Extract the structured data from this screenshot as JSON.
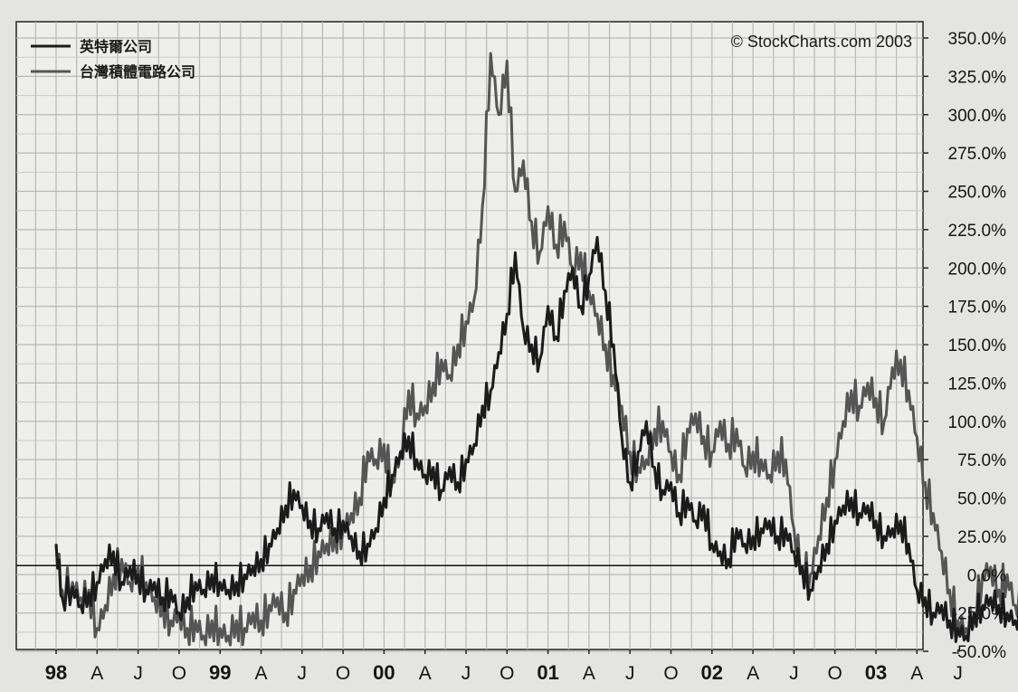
{
  "chart_data": {
    "type": "line",
    "title": "",
    "xlabel": "",
    "ylabel": "",
    "copyright": "© StockCharts.com 2003",
    "ylim": [
      -50,
      350
    ],
    "y_ticks": [
      "350.0%",
      "325.0%",
      "300.0%",
      "275.0%",
      "250.0%",
      "225.0%",
      "200.0%",
      "175.0%",
      "150.0%",
      "125.0%",
      "100.0%",
      "75.0%",
      "50.0%",
      "25.0%",
      "0.0%",
      "-25.0%",
      "-50.0%"
    ],
    "x_ticks": [
      {
        "label": "98",
        "year": true
      },
      {
        "label": "A",
        "year": false
      },
      {
        "label": "J",
        "year": false
      },
      {
        "label": "O",
        "year": false
      },
      {
        "label": "99",
        "year": true
      },
      {
        "label": "A",
        "year": false
      },
      {
        "label": "J",
        "year": false
      },
      {
        "label": "O",
        "year": false
      },
      {
        "label": "00",
        "year": true
      },
      {
        "label": "A",
        "year": false
      },
      {
        "label": "J",
        "year": false
      },
      {
        "label": "O",
        "year": false
      },
      {
        "label": "01",
        "year": true
      },
      {
        "label": "A",
        "year": false
      },
      {
        "label": "J",
        "year": false
      },
      {
        "label": "O",
        "year": false
      },
      {
        "label": "02",
        "year": true
      },
      {
        "label": "A",
        "year": false
      },
      {
        "label": "J",
        "year": false
      },
      {
        "label": "O",
        "year": false
      },
      {
        "label": "03",
        "year": true
      },
      {
        "label": "A",
        "year": false
      },
      {
        "label": "J",
        "year": false
      }
    ],
    "reference_line": 0,
    "grid": true,
    "legend_position": "top-left",
    "series": [
      {
        "name": "英特爾公司",
        "color": "#1b1b1b",
        "points": [
          [
            0,
            20
          ],
          [
            0.3,
            -15
          ],
          [
            0.8,
            -8
          ],
          [
            1.2,
            -20
          ],
          [
            1.6,
            -12
          ],
          [
            2.0,
            -5
          ],
          [
            2.4,
            10
          ],
          [
            2.8,
            15
          ],
          [
            3.2,
            -5
          ],
          [
            3.6,
            5
          ],
          [
            4.0,
            0
          ],
          [
            4.4,
            -10
          ],
          [
            4.8,
            -5
          ],
          [
            5.2,
            -15
          ],
          [
            5.6,
            -10
          ],
          [
            6.0,
            -25
          ],
          [
            6.4,
            -15
          ],
          [
            6.8,
            -5
          ],
          [
            7.2,
            -10
          ],
          [
            7.6,
            0
          ],
          [
            8.0,
            -5
          ],
          [
            8.4,
            -10
          ],
          [
            8.8,
            -5
          ],
          [
            9.2,
            0
          ],
          [
            9.6,
            5
          ],
          [
            10.0,
            10
          ],
          [
            10.4,
            20
          ],
          [
            10.8,
            30
          ],
          [
            11.2,
            45
          ],
          [
            11.6,
            55
          ],
          [
            12.0,
            45
          ],
          [
            12.4,
            35
          ],
          [
            12.8,
            30
          ],
          [
            13.2,
            40
          ],
          [
            13.6,
            30
          ],
          [
            14.0,
            35
          ],
          [
            14.4,
            25
          ],
          [
            14.8,
            15
          ],
          [
            15.2,
            20
          ],
          [
            15.6,
            30
          ],
          [
            16.0,
            50
          ],
          [
            16.4,
            65
          ],
          [
            16.8,
            80
          ],
          [
            17.2,
            90
          ],
          [
            17.6,
            75
          ],
          [
            18.0,
            65
          ],
          [
            18.4,
            70
          ],
          [
            18.8,
            55
          ],
          [
            19.2,
            70
          ],
          [
            19.6,
            60
          ],
          [
            20.0,
            75
          ],
          [
            20.4,
            85
          ],
          [
            20.8,
            110
          ],
          [
            21.2,
            120
          ],
          [
            21.6,
            145
          ],
          [
            22.0,
            170
          ],
          [
            22.4,
            210
          ],
          [
            22.8,
            160
          ],
          [
            23.2,
            150
          ],
          [
            23.6,
            140
          ],
          [
            24.0,
            175
          ],
          [
            24.4,
            155
          ],
          [
            24.8,
            185
          ],
          [
            25.2,
            200
          ],
          [
            25.6,
            175
          ],
          [
            26.0,
            195
          ],
          [
            26.4,
            220
          ],
          [
            26.8,
            185
          ],
          [
            27.2,
            150
          ],
          [
            27.6,
            90
          ],
          [
            28.0,
            60
          ],
          [
            28.4,
            80
          ],
          [
            28.8,
            100
          ],
          [
            29.2,
            70
          ],
          [
            29.6,
            55
          ],
          [
            30.0,
            60
          ],
          [
            30.4,
            40
          ],
          [
            30.8,
            50
          ],
          [
            31.2,
            35
          ],
          [
            31.6,
            45
          ],
          [
            32.0,
            20
          ],
          [
            32.4,
            15
          ],
          [
            32.8,
            10
          ],
          [
            33.2,
            30
          ],
          [
            33.6,
            20
          ],
          [
            34.0,
            25
          ],
          [
            34.4,
            30
          ],
          [
            34.8,
            35
          ],
          [
            35.2,
            25
          ],
          [
            35.6,
            30
          ],
          [
            36.0,
            15
          ],
          [
            36.4,
            5
          ],
          [
            36.8,
            -10
          ],
          [
            37.2,
            5
          ],
          [
            37.6,
            20
          ],
          [
            38.0,
            35
          ],
          [
            38.4,
            45
          ],
          [
            38.8,
            50
          ],
          [
            39.2,
            40
          ],
          [
            39.6,
            45
          ],
          [
            40.0,
            35
          ],
          [
            40.4,
            25
          ],
          [
            40.8,
            30
          ],
          [
            41.2,
            35
          ],
          [
            41.6,
            20
          ],
          [
            42.0,
            -10
          ],
          [
            42.4,
            -15
          ],
          [
            42.8,
            -25
          ],
          [
            43.2,
            -20
          ],
          [
            43.6,
            -30
          ],
          [
            44.0,
            -35
          ],
          [
            44.4,
            -40
          ],
          [
            44.8,
            -25
          ],
          [
            45.2,
            -20
          ],
          [
            45.6,
            -15
          ],
          [
            46.0,
            -20
          ],
          [
            46.4,
            -25
          ],
          [
            46.8,
            -30
          ],
          [
            47.2,
            -25
          ],
          [
            47.6,
            -20
          ],
          [
            48.0,
            -15
          ],
          [
            48.4,
            -20
          ],
          [
            48.8,
            -10
          ],
          [
            49.2,
            -5
          ],
          [
            49.5,
            -10
          ],
          [
            49.8,
            -8
          ]
        ]
      },
      {
        "name": "台灣積體電路公司",
        "color": "#555555",
        "points": [
          [
            0,
            20
          ],
          [
            0.3,
            -10
          ],
          [
            0.8,
            -5
          ],
          [
            1.2,
            -15
          ],
          [
            1.6,
            -10
          ],
          [
            2.0,
            -35
          ],
          [
            2.4,
            -20
          ],
          [
            2.8,
            0
          ],
          [
            3.2,
            10
          ],
          [
            3.6,
            -5
          ],
          [
            4.0,
            5
          ],
          [
            4.4,
            -5
          ],
          [
            4.8,
            -15
          ],
          [
            5.2,
            -20
          ],
          [
            5.6,
            -30
          ],
          [
            6.0,
            -25
          ],
          [
            6.4,
            -35
          ],
          [
            6.8,
            -30
          ],
          [
            7.2,
            -40
          ],
          [
            7.6,
            -30
          ],
          [
            8.0,
            -35
          ],
          [
            8.4,
            -40
          ],
          [
            8.8,
            -30
          ],
          [
            9.2,
            -35
          ],
          [
            9.6,
            -25
          ],
          [
            10.0,
            -30
          ],
          [
            10.4,
            -20
          ],
          [
            10.8,
            -15
          ],
          [
            11.2,
            -25
          ],
          [
            11.6,
            -10
          ],
          [
            12.0,
            0
          ],
          [
            12.4,
            5
          ],
          [
            12.8,
            15
          ],
          [
            13.2,
            20
          ],
          [
            13.6,
            25
          ],
          [
            14.0,
            30
          ],
          [
            14.4,
            40
          ],
          [
            14.8,
            50
          ],
          [
            15.2,
            80
          ],
          [
            15.6,
            75
          ],
          [
            16.0,
            85
          ],
          [
            16.4,
            60
          ],
          [
            16.8,
            80
          ],
          [
            17.2,
            120
          ],
          [
            17.6,
            105
          ],
          [
            18.0,
            110
          ],
          [
            18.4,
            125
          ],
          [
            18.8,
            140
          ],
          [
            19.2,
            130
          ],
          [
            19.6,
            150
          ],
          [
            20.0,
            165
          ],
          [
            20.4,
            180
          ],
          [
            20.8,
            240
          ],
          [
            21.2,
            340
          ],
          [
            21.6,
            300
          ],
          [
            22.0,
            335
          ],
          [
            22.4,
            250
          ],
          [
            22.8,
            270
          ],
          [
            23.2,
            230
          ],
          [
            23.6,
            210
          ],
          [
            24.0,
            240
          ],
          [
            24.4,
            215
          ],
          [
            24.8,
            230
          ],
          [
            25.2,
            200
          ],
          [
            25.6,
            210
          ],
          [
            26.0,
            185
          ],
          [
            26.4,
            170
          ],
          [
            26.8,
            150
          ],
          [
            27.2,
            130
          ],
          [
            27.6,
            110
          ],
          [
            28.0,
            80
          ],
          [
            28.4,
            70
          ],
          [
            28.8,
            75
          ],
          [
            29.2,
            95
          ],
          [
            29.6,
            100
          ],
          [
            30.0,
            80
          ],
          [
            30.4,
            65
          ],
          [
            30.8,
            95
          ],
          [
            31.2,
            105
          ],
          [
            31.6,
            90
          ],
          [
            32.0,
            80
          ],
          [
            32.4,
            100
          ],
          [
            32.8,
            85
          ],
          [
            33.2,
            95
          ],
          [
            33.6,
            70
          ],
          [
            34.0,
            80
          ],
          [
            34.4,
            75
          ],
          [
            34.8,
            65
          ],
          [
            35.2,
            80
          ],
          [
            35.6,
            75
          ],
          [
            36.0,
            30
          ],
          [
            36.4,
            5
          ],
          [
            36.8,
            0
          ],
          [
            37.2,
            25
          ],
          [
            37.6,
            50
          ],
          [
            38.0,
            75
          ],
          [
            38.4,
            100
          ],
          [
            38.8,
            120
          ],
          [
            39.2,
            110
          ],
          [
            39.6,
            125
          ],
          [
            40.0,
            115
          ],
          [
            40.4,
            100
          ],
          [
            40.8,
            135
          ],
          [
            41.2,
            140
          ],
          [
            41.6,
            120
          ],
          [
            42.0,
            90
          ],
          [
            42.4,
            60
          ],
          [
            42.8,
            40
          ],
          [
            43.2,
            15
          ],
          [
            43.6,
            -10
          ],
          [
            44.0,
            -30
          ],
          [
            44.4,
            -35
          ],
          [
            44.8,
            -25
          ],
          [
            45.2,
            0
          ],
          [
            45.6,
            5
          ],
          [
            46.0,
            -10
          ],
          [
            46.4,
            0
          ],
          [
            46.8,
            -20
          ],
          [
            47.2,
            -15
          ],
          [
            47.6,
            -5
          ],
          [
            48.0,
            -25
          ],
          [
            48.4,
            -10
          ],
          [
            48.8,
            5
          ],
          [
            49.2,
            15
          ],
          [
            49.5,
            25
          ],
          [
            49.8,
            20
          ]
        ]
      }
    ]
  }
}
